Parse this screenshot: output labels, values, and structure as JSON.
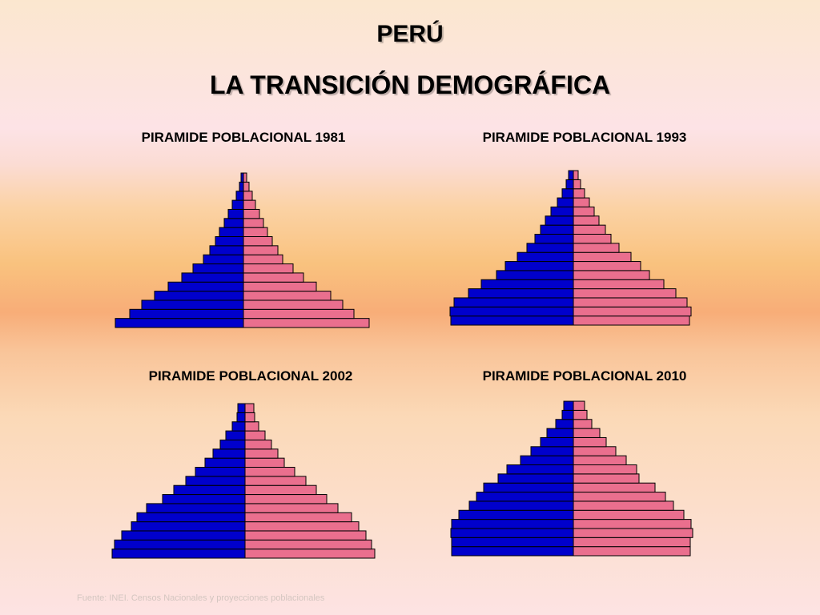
{
  "title": "PERÚ",
  "subtitle": "LA TRANSICIÓN DEMOGRÁFICA",
  "source": "Fuente: INEI. Censos Nacionales y proyecciones poblacionales",
  "colors": {
    "male": "#0000cc",
    "female": "#ea6f8e",
    "outline": "#000000"
  },
  "chart_data": [
    {
      "type": "bar",
      "title": "PIRAMIDE POBLACIONAL 1981",
      "orientation": "population-pyramid",
      "series": [
        {
          "name": "",
          "side": "left",
          "values": [
            16.0,
            14.2,
            12.7,
            11.1,
            9.4,
            7.7,
            6.3,
            5.0,
            4.2,
            3.5,
            3.0,
            2.4,
            1.9,
            1.4,
            0.9,
            0.5,
            0.3
          ]
        },
        {
          "name": "",
          "side": "right",
          "values": [
            15.7,
            13.8,
            12.4,
            10.9,
            9.1,
            7.5,
            6.2,
            4.9,
            4.3,
            3.6,
            3.0,
            2.5,
            2.0,
            1.5,
            1.1,
            0.7,
            0.4
          ]
        }
      ]
    },
    {
      "type": "bar",
      "title": "PIRAMIDE POBLACIONAL 1993",
      "orientation": "population-pyramid",
      "series": [
        {
          "name": "",
          "side": "left",
          "values": [
            15.3,
            15.4,
            14.9,
            13.1,
            11.5,
            9.6,
            8.5,
            7.0,
            5.8,
            4.8,
            4.1,
            3.5,
            2.8,
            2.0,
            1.4,
            0.9,
            0.6
          ]
        },
        {
          "name": "",
          "side": "right",
          "values": [
            14.5,
            14.7,
            14.2,
            12.8,
            11.3,
            9.5,
            8.4,
            7.2,
            5.7,
            4.7,
            4.0,
            3.2,
            2.6,
            2.0,
            1.4,
            0.9,
            0.6
          ]
        }
      ]
    },
    {
      "type": "bar",
      "title": "PIRAMIDE POBLACIONAL 2002",
      "orientation": "population-pyramid",
      "series": [
        {
          "name": "",
          "side": "left",
          "values": [
            16.6,
            16.3,
            15.4,
            14.2,
            13.5,
            12.3,
            10.3,
            8.9,
            7.4,
            6.2,
            5.0,
            4.0,
            3.1,
            2.4,
            1.6,
            1.0,
            0.9
          ]
        },
        {
          "name": "",
          "side": "right",
          "values": [
            16.2,
            15.8,
            15.1,
            14.2,
            13.3,
            11.6,
            10.2,
            8.9,
            7.6,
            6.2,
            4.9,
            4.1,
            3.3,
            2.5,
            1.7,
            1.2,
            1.1
          ]
        }
      ]
    },
    {
      "type": "bar",
      "title": "PIRAMIDE POBLACIONAL 2010",
      "orientation": "population-pyramid",
      "series": [
        {
          "name": "",
          "side": "left",
          "values": [
            15.2,
            15.2,
            15.3,
            15.2,
            14.3,
            13.0,
            12.1,
            11.2,
            9.4,
            8.3,
            6.6,
            5.3,
            4.1,
            3.3,
            2.2,
            1.4,
            1.2
          ]
        },
        {
          "name": "",
          "side": "right",
          "values": [
            14.6,
            14.6,
            14.9,
            14.7,
            13.8,
            12.5,
            11.5,
            10.2,
            8.2,
            7.9,
            6.6,
            5.3,
            4.1,
            3.3,
            2.3,
            1.7,
            1.4
          ]
        }
      ]
    }
  ]
}
